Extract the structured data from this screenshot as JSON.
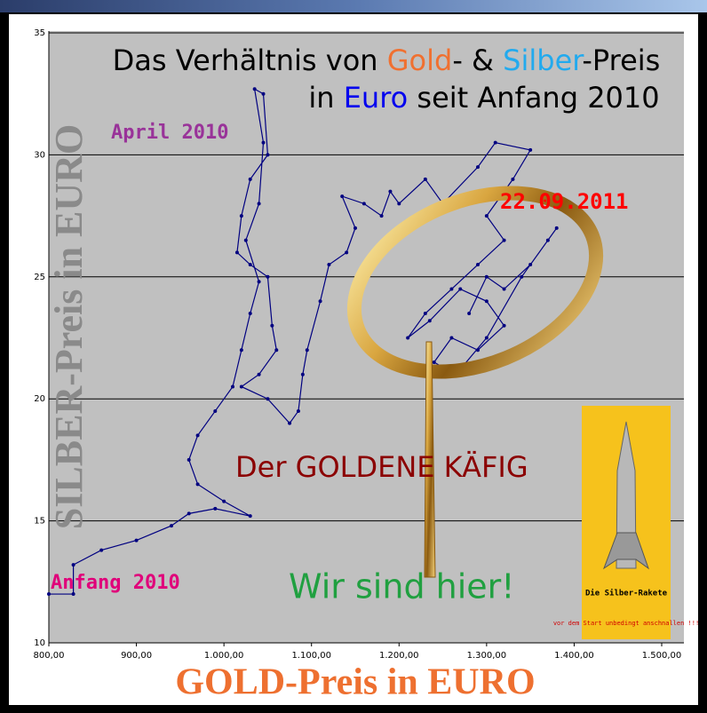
{
  "chart_data": {
    "type": "line",
    "title": [
      [
        {
          "text": "Das Verhältnis von ",
          "color": "#000000"
        },
        {
          "text": "Gold",
          "color": "#f07030"
        },
        {
          "text": "- & ",
          "color": "#000000"
        },
        {
          "text": "Silber",
          "color": "#22aaee"
        },
        {
          "text": "-Preis",
          "color": "#000000"
        }
      ],
      [
        {
          "text": "in ",
          "color": "#000000"
        },
        {
          "text": "Euro",
          "color": "#0000ee"
        },
        {
          "text": " seit Anfang 2010",
          "color": "#000000"
        }
      ]
    ],
    "x_label": "GOLD-Preis in EURO",
    "y_label": "SILBER-Preis in EURO",
    "annotations": {
      "april": "April 2010",
      "date": "22.09.2011",
      "cage": "Der GOLDENE KÄFIG",
      "here": "Wir sind hier!",
      "start": "Anfang 2010",
      "rocket_title": "Die Silber-Rakete",
      "rocket_note": "vor dem Start unbedingt anschnallen !!!"
    },
    "color": "#000080",
    "x": [
      800,
      828,
      828,
      860,
      900,
      940,
      960,
      990,
      1030,
      1000,
      970,
      960,
      970,
      990,
      1010,
      1020,
      1030,
      1040,
      1025,
      1040,
      1045,
      1035,
      1045,
      1050,
      1030,
      1020,
      1015,
      1030,
      1050,
      1055,
      1060,
      1040,
      1020,
      1050,
      1075,
      1085,
      1090,
      1095,
      1110,
      1120,
      1140,
      1150,
      1135,
      1160,
      1180,
      1190,
      1200,
      1230,
      1250,
      1290,
      1310,
      1350,
      1330,
      1300,
      1320,
      1290,
      1260,
      1230,
      1210,
      1235,
      1270,
      1300,
      1320,
      1290,
      1260,
      1240,
      1265,
      1300,
      1340,
      1370,
      1380,
      1350,
      1320,
      1300,
      1280
    ],
    "values": [
      12,
      12,
      13.2,
      13.8,
      14.2,
      14.8,
      15.3,
      15.5,
      15.2,
      15.8,
      16.5,
      17.5,
      18.5,
      19.5,
      20.5,
      22,
      23.5,
      24.8,
      26.5,
      28,
      30.5,
      32.7,
      32.5,
      30,
      29,
      27.5,
      26,
      25.5,
      25,
      23,
      22,
      21,
      20.5,
      20,
      19,
      19.5,
      21,
      22,
      24,
      25.5,
      26,
      27,
      28.3,
      28,
      27.5,
      28.5,
      28,
      29,
      28,
      29.5,
      30.5,
      30.2,
      29,
      27.5,
      26.5,
      25.5,
      24.5,
      23.5,
      22.5,
      23.2,
      24.5,
      24,
      23,
      22,
      22.5,
      21.5,
      21,
      22.5,
      25,
      26.5,
      27,
      25.5,
      24.5,
      25,
      23.5
    ],
    "xlim": [
      800,
      1500
    ],
    "ylim": [
      10,
      35
    ],
    "xticks": [
      {
        "value": 800,
        "label": "800,00"
      },
      {
        "value": 900,
        "label": "900,00"
      },
      {
        "value": 1000,
        "label": "1.000,00"
      },
      {
        "value": 1100,
        "label": "1.100,00"
      },
      {
        "value": 1200,
        "label": "1.200,00"
      },
      {
        "value": 1300,
        "label": "1.300,00"
      },
      {
        "value": 1400,
        "label": "1.400,00"
      },
      {
        "value": 1500,
        "label": "1.500,00"
      }
    ],
    "yticks": [
      10,
      15,
      20,
      25,
      30,
      35
    ],
    "grid": true
  }
}
